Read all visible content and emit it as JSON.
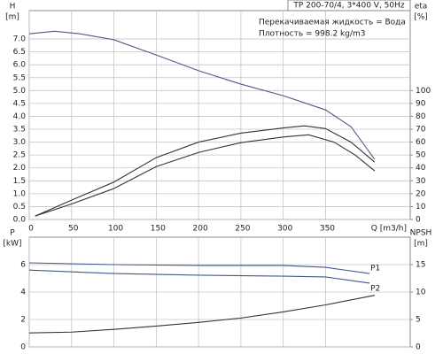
{
  "chart_data": [
    {
      "type": "line",
      "title": "TP 200-70/4, 3*400 V, 50Hz",
      "annotations": [
        "Перекачиваемая жидкость = Вода",
        "Плотность = 998.2 kg/m3"
      ],
      "ylabel": "H",
      "yunit": "[m]",
      "y2label": "eta",
      "y2unit": "[%]",
      "xlabel": "Q [m3/h]",
      "xlim": [
        0,
        450
      ],
      "ylim": [
        0,
        8.1
      ],
      "y2lim": [
        0,
        162
      ],
      "xticks": [
        0,
        50,
        100,
        150,
        200,
        250,
        300,
        350
      ],
      "yticks": [
        {
          "value": 0,
          "label": "0.0"
        },
        0.5,
        {
          "value": 1,
          "label": "1.0"
        },
        1.5,
        {
          "value": 2,
          "label": "2.0"
        },
        2.5,
        {
          "value": 3,
          "label": "3.0"
        },
        3.5,
        {
          "value": 4,
          "label": "4.0"
        },
        4.5,
        {
          "value": 5,
          "label": "5.0"
        },
        5.5,
        {
          "value": 6,
          "label": "6.0"
        },
        6.5,
        {
          "value": 7,
          "label": "7.0"
        }
      ],
      "y2ticks": [
        0,
        10,
        20,
        30,
        40,
        50,
        60,
        70,
        80,
        90,
        100
      ],
      "grid": true,
      "series": [
        {
          "color": "#4a5a8c",
          "axis": "y",
          "x": [
            0,
            30,
            60,
            100,
            150,
            200,
            250,
            300,
            350,
            380,
            408
          ],
          "values": [
            7.2,
            7.3,
            7.2,
            6.97,
            6.38,
            5.77,
            5.25,
            4.8,
            4.25,
            3.6,
            2.33
          ]
        },
        {
          "color": "#333333",
          "axis": "y2",
          "x": [
            7,
            50,
            100,
            150,
            200,
            250,
            300,
            325,
            350,
            380,
            408
          ],
          "values": [
            2.7,
            15,
            29,
            48,
            60,
            67,
            71,
            72.6,
            70.5,
            60,
            44.5
          ]
        },
        {
          "color": "#333333",
          "axis": "y2",
          "x": [
            7,
            50,
            100,
            150,
            200,
            250,
            300,
            330,
            360,
            385,
            408
          ],
          "values": [
            2.7,
            12,
            24,
            41,
            52,
            59.6,
            64,
            65.7,
            60,
            50,
            37.7
          ]
        }
      ]
    },
    {
      "type": "line",
      "ylabel": "P",
      "yunit": "[kW]",
      "y2label": "NPSH",
      "y2unit": "[m]",
      "xlim": [
        0,
        450
      ],
      "ylim": [
        0,
        8
      ],
      "y2lim": [
        0,
        20
      ],
      "yticks": [
        0,
        2,
        4,
        6
      ],
      "y2ticks": [
        0,
        5,
        10,
        15
      ],
      "grid": true,
      "series": [
        {
          "name": "P1",
          "color": "#3a5a8c",
          "axis": "y",
          "x": [
            0,
            100,
            200,
            300,
            350,
            402
          ],
          "values": [
            6.13,
            6.0,
            5.94,
            5.94,
            5.8,
            5.35
          ]
        },
        {
          "name": "P2",
          "color": "#3a5a8c",
          "axis": "y",
          "x": [
            0,
            100,
            200,
            300,
            350,
            402
          ],
          "values": [
            5.6,
            5.35,
            5.23,
            5.16,
            5.1,
            4.65
          ]
        },
        {
          "color": "#333333",
          "axis": "y2",
          "x": [
            0,
            50,
            100,
            150,
            200,
            250,
            300,
            350,
            408
          ],
          "values": [
            2.55,
            2.7,
            3.2,
            3.8,
            4.47,
            5.26,
            6.38,
            7.66,
            9.4
          ]
        }
      ]
    }
  ]
}
